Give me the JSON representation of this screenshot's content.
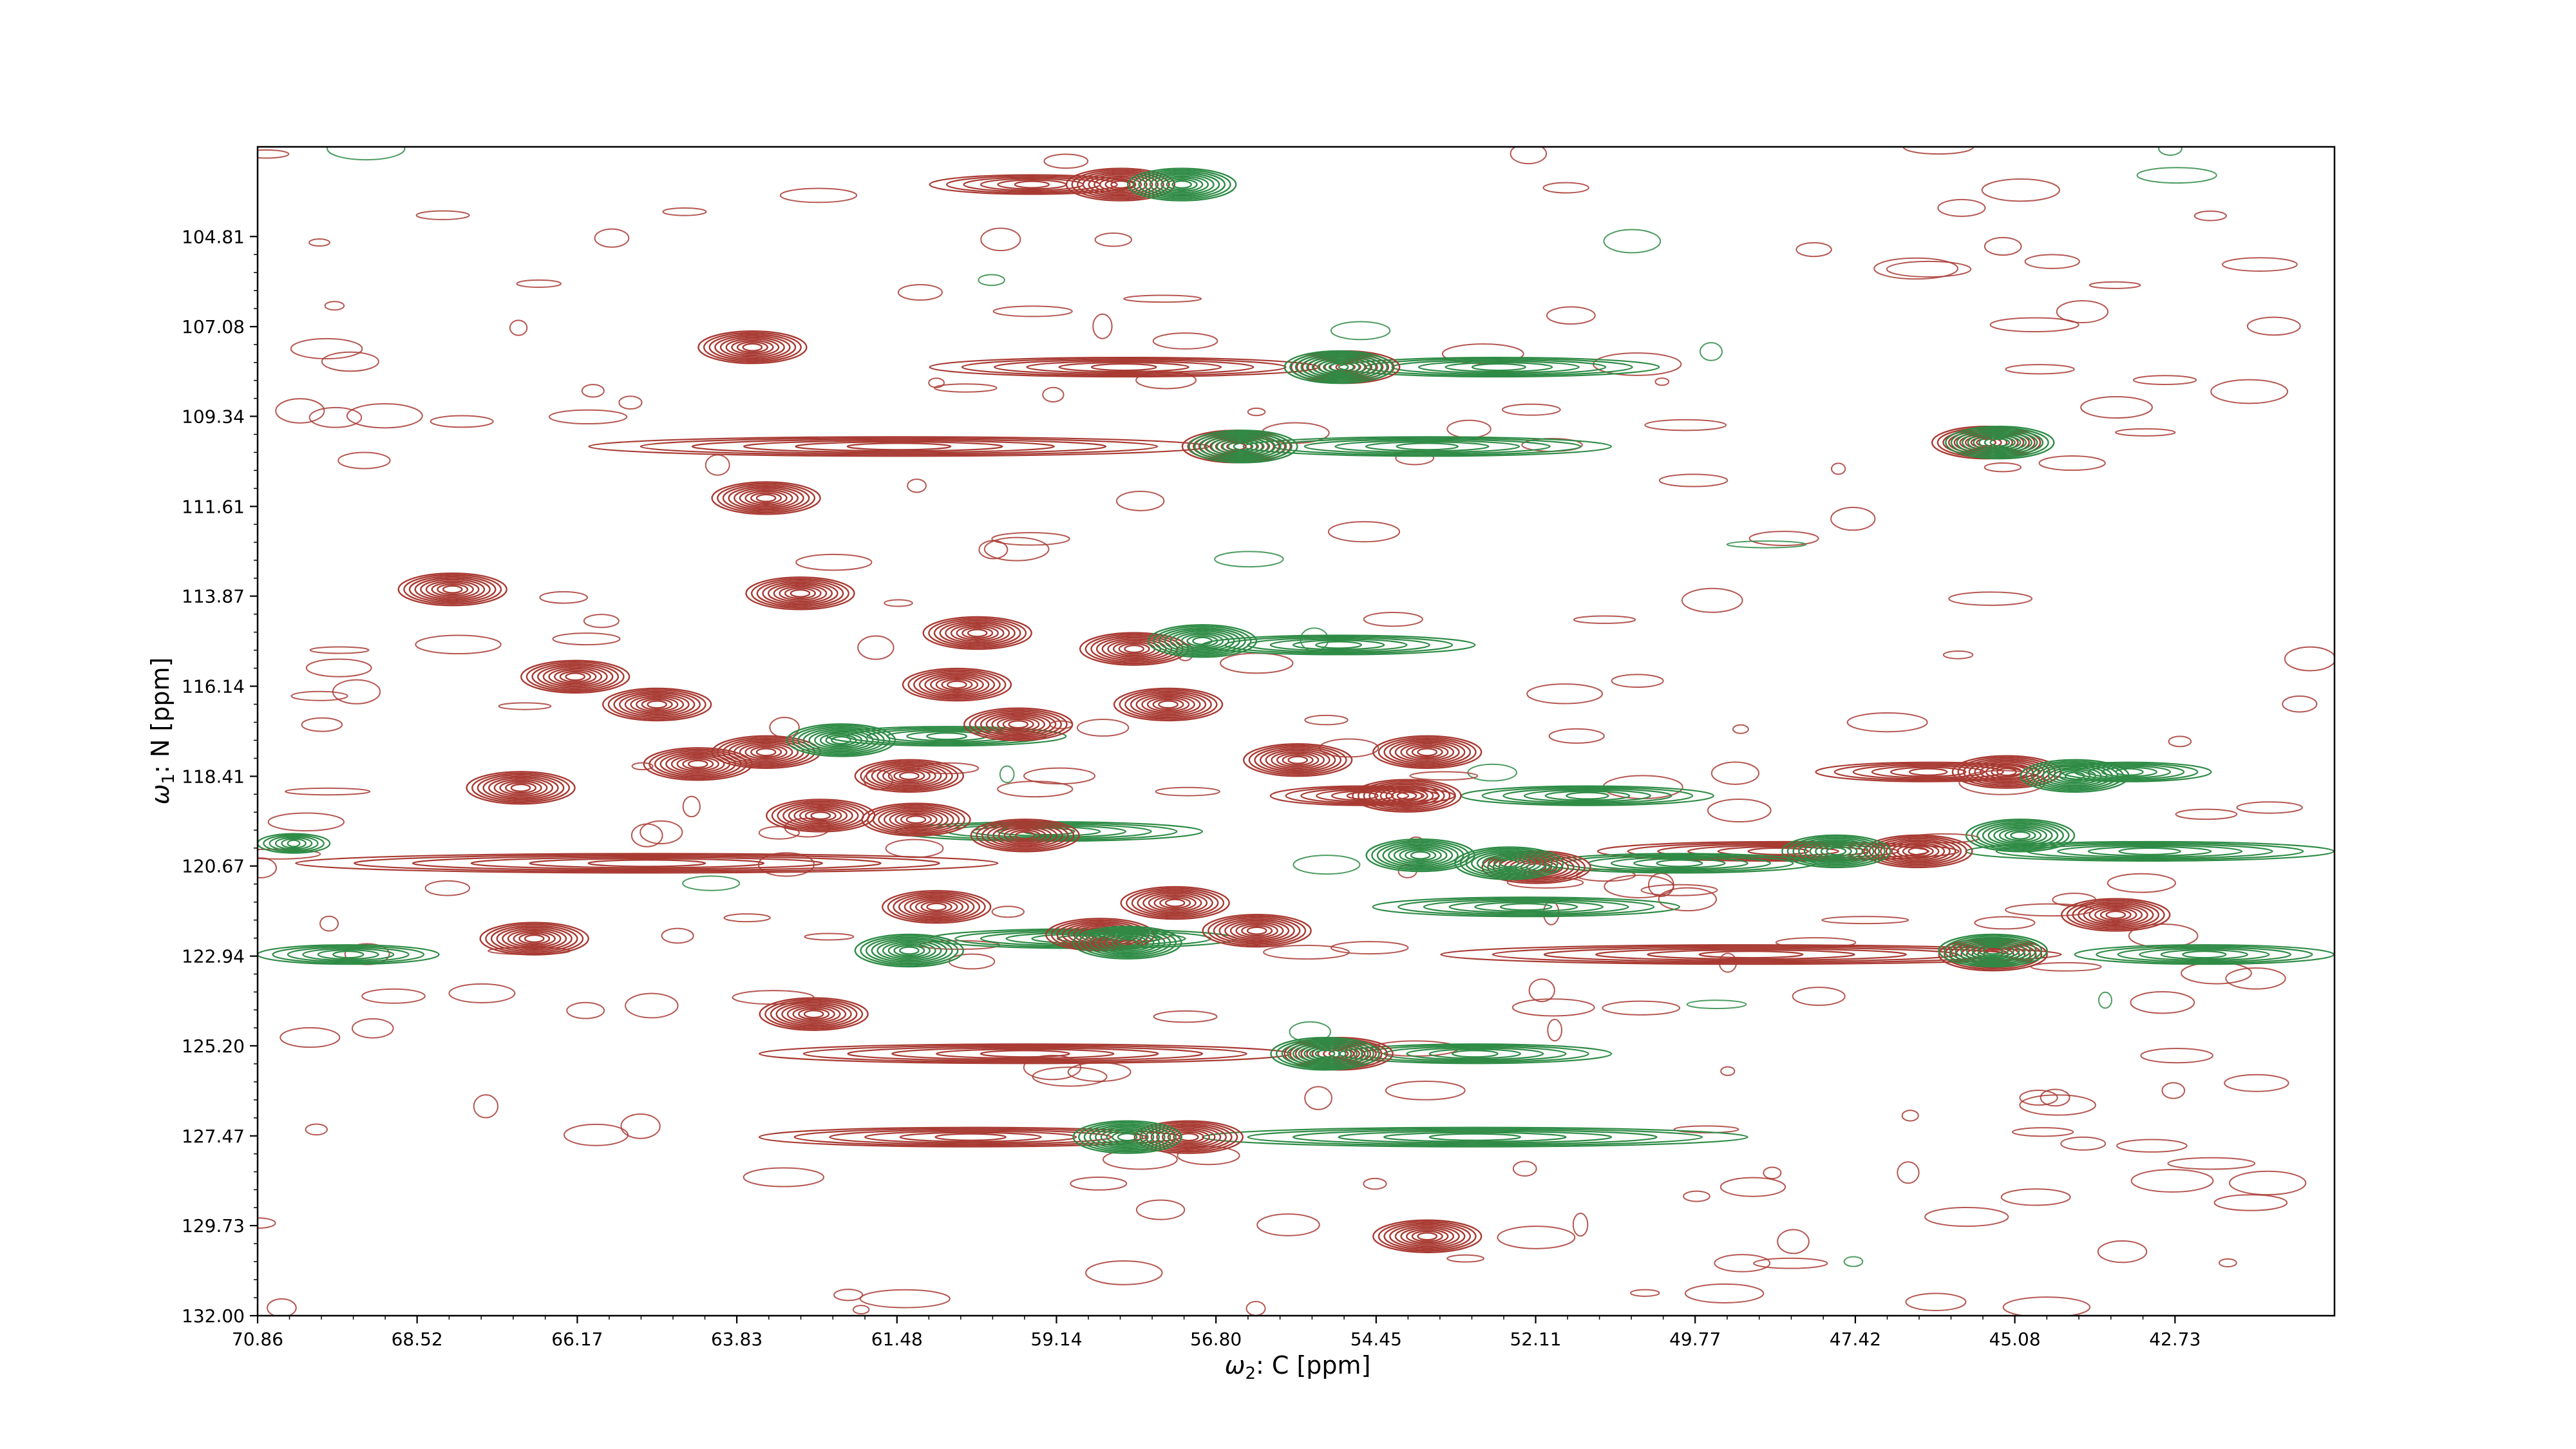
{
  "chart_data": {
    "type": "contour",
    "xlabel_symbol": "ω",
    "xlabel_sub": "2",
    "xlabel_rest": ": C [ppm]",
    "ylabel_symbol": "ω",
    "ylabel_sub": "1",
    "ylabel_rest": ": N [ppm]",
    "xlim": [
      70.86,
      40.39
    ],
    "ylim": [
      132.0,
      102.55
    ],
    "x_ticks": [
      "70.86",
      "68.52",
      "66.17",
      "63.83",
      "61.48",
      "59.14",
      "56.80",
      "54.45",
      "52.11",
      "49.77",
      "47.42",
      "45.08",
      "42.73"
    ],
    "x_tick_values": [
      70.86,
      68.52,
      66.17,
      63.83,
      61.48,
      59.14,
      56.8,
      54.45,
      52.11,
      49.77,
      47.42,
      45.08,
      42.73
    ],
    "y_ticks": [
      "104.81",
      "107.08",
      "109.34",
      "111.61",
      "113.87",
      "116.14",
      "118.41",
      "120.67",
      "122.94",
      "125.20",
      "127.47",
      "129.73",
      "132.00"
    ],
    "y_tick_values": [
      104.81,
      107.08,
      109.34,
      111.61,
      113.87,
      116.14,
      118.41,
      120.67,
      122.94,
      125.2,
      127.47,
      129.73,
      132.0
    ],
    "grid": false,
    "colors": {
      "positive": "#a83a32",
      "negative": "#2e8b45",
      "frame": "#000000"
    },
    "series": [
      {
        "sign": "positive",
        "peaks": [
          [
            58.2,
            103.5
          ],
          [
            54.9,
            108.1
          ],
          [
            56.5,
            110.1
          ],
          [
            45.5,
            110.0
          ],
          [
            68.0,
            113.7
          ],
          [
            66.2,
            115.9
          ],
          [
            65.0,
            116.6
          ],
          [
            63.4,
            117.8
          ],
          [
            62.6,
            119.4
          ],
          [
            61.2,
            119.5
          ],
          [
            60.9,
            121.7
          ],
          [
            59.6,
            119.9
          ],
          [
            57.4,
            121.6
          ],
          [
            58.5,
            122.4
          ],
          [
            56.2,
            122.3
          ],
          [
            55.6,
            118.0
          ],
          [
            54.0,
            118.9
          ],
          [
            52.1,
            120.7
          ],
          [
            59.7,
            117.1
          ],
          [
            58.0,
            115.2
          ],
          [
            57.5,
            116.6
          ],
          [
            53.7,
            117.8
          ],
          [
            45.2,
            118.3
          ],
          [
            46.5,
            120.3
          ],
          [
            43.6,
            121.9
          ],
          [
            45.4,
            122.9
          ],
          [
            55.0,
            125.4
          ],
          [
            57.2,
            127.5
          ],
          [
            53.7,
            130.0
          ],
          [
            62.7,
            124.4
          ],
          [
            66.8,
            122.5
          ],
          [
            67.0,
            118.7
          ],
          [
            64.4,
            118.1
          ],
          [
            63.4,
            111.4
          ],
          [
            62.9,
            113.8
          ],
          [
            63.6,
            107.6
          ],
          [
            60.3,
            114.8
          ],
          [
            61.3,
            118.4
          ],
          [
            60.6,
            116.1
          ]
        ]
      },
      {
        "sign": "negative",
        "peaks": [
          [
            57.3,
            103.5
          ],
          [
            55.0,
            108.1
          ],
          [
            56.4,
            110.1
          ],
          [
            45.3,
            110.0
          ],
          [
            58.1,
            122.6
          ],
          [
            58.1,
            127.5
          ],
          [
            45.4,
            122.8
          ],
          [
            55.2,
            125.4
          ],
          [
            52.5,
            120.6
          ],
          [
            44.2,
            118.4
          ],
          [
            47.7,
            120.3
          ],
          [
            61.3,
            122.8
          ],
          [
            45.0,
            119.9
          ],
          [
            57.0,
            115.0
          ],
          [
            62.3,
            117.5
          ],
          [
            53.8,
            120.4
          ]
        ]
      }
    ],
    "ridges": [
      {
        "sign": "positive",
        "y": 110.1,
        "x_from": 66.0,
        "x_to": 56.9
      },
      {
        "sign": "negative",
        "y": 110.1,
        "x_from": 56.4,
        "x_to": 51.0
      },
      {
        "sign": "positive",
        "y": 108.1,
        "x_from": 61.0,
        "x_to": 55.3
      },
      {
        "sign": "negative",
        "y": 108.1,
        "x_from": 55.0,
        "x_to": 50.3
      },
      {
        "sign": "positive",
        "y": 103.5,
        "x_from": 61.0,
        "x_to": 58.0
      },
      {
        "sign": "positive",
        "y": 127.5,
        "x_from": 63.5,
        "x_to": 57.3
      },
      {
        "sign": "negative",
        "y": 127.5,
        "x_from": 57.0,
        "x_to": 49.0
      },
      {
        "sign": "positive",
        "y": 122.9,
        "x_from": 53.5,
        "x_to": 44.4
      },
      {
        "sign": "negative",
        "y": 122.9,
        "x_from": 44.2,
        "x_to": 40.4
      },
      {
        "sign": "negative",
        "y": 122.9,
        "x_from": 70.86,
        "x_to": 68.2
      },
      {
        "sign": "positive",
        "y": 120.3,
        "x_from": 51.2,
        "x_to": 45.9
      },
      {
        "sign": "negative",
        "y": 120.3,
        "x_from": 45.8,
        "x_to": 40.4
      },
      {
        "sign": "positive",
        "y": 118.3,
        "x_from": 48.0,
        "x_to": 44.7
      },
      {
        "sign": "negative",
        "y": 118.3,
        "x_from": 44.6,
        "x_to": 42.2
      },
      {
        "sign": "positive",
        "y": 120.6,
        "x_from": 70.3,
        "x_to": 60.0
      },
      {
        "sign": "negative",
        "y": 120.6,
        "x_from": 52.0,
        "x_to": 48.0
      },
      {
        "sign": "positive",
        "y": 125.4,
        "x_from": 63.5,
        "x_to": 55.7
      },
      {
        "sign": "negative",
        "y": 125.4,
        "x_from": 55.0,
        "x_to": 51.0
      },
      {
        "sign": "positive",
        "y": 118.9,
        "x_from": 56.0,
        "x_to": 53.3
      },
      {
        "sign": "negative",
        "y": 118.9,
        "x_from": 53.2,
        "x_to": 49.5
      },
      {
        "sign": "negative",
        "y": 115.1,
        "x_from": 57.0,
        "x_to": 53.0
      },
      {
        "sign": "negative",
        "y": 117.4,
        "x_from": 62.5,
        "x_to": 59.0
      },
      {
        "sign": "negative",
        "y": 122.5,
        "x_from": 61.0,
        "x_to": 56.5
      },
      {
        "sign": "negative",
        "y": 121.7,
        "x_from": 54.5,
        "x_to": 50.0
      },
      {
        "sign": "negative",
        "y": 119.8,
        "x_from": 61.5,
        "x_to": 57.0
      },
      {
        "sign": "negative",
        "y": 120.1,
        "x_from": 70.86,
        "x_to": 69.8
      }
    ]
  }
}
